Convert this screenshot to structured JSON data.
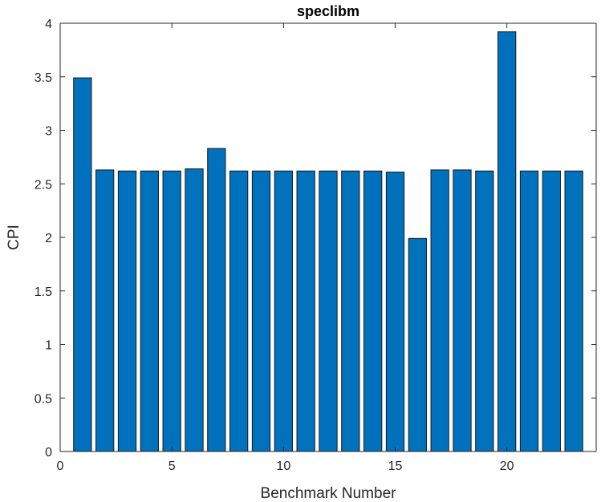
{
  "chart_data": {
    "type": "bar",
    "title": "speclibm",
    "xlabel": "Benchmark Number",
    "ylabel": "CPI",
    "x": [
      1,
      2,
      3,
      4,
      5,
      6,
      7,
      8,
      9,
      10,
      11,
      12,
      13,
      14,
      15,
      16,
      17,
      18,
      19,
      20,
      21,
      22,
      23
    ],
    "values": [
      3.49,
      2.63,
      2.62,
      2.62,
      2.62,
      2.64,
      2.83,
      2.62,
      2.62,
      2.62,
      2.62,
      2.62,
      2.62,
      2.62,
      2.61,
      1.99,
      2.63,
      2.63,
      2.62,
      3.92,
      2.62,
      2.62,
      2.62
    ],
    "xlim": [
      0,
      24
    ],
    "ylim": [
      0,
      4
    ],
    "xticks": [
      "0",
      "5",
      "10",
      "15",
      "20"
    ],
    "yticks": [
      "0",
      "0.5",
      "1",
      "1.5",
      "2",
      "2.5",
      "3",
      "3.5",
      "4"
    ],
    "bar_color": "#0072BD",
    "bar_edge_color": "#1a1a1a",
    "grid": false,
    "box": true
  }
}
